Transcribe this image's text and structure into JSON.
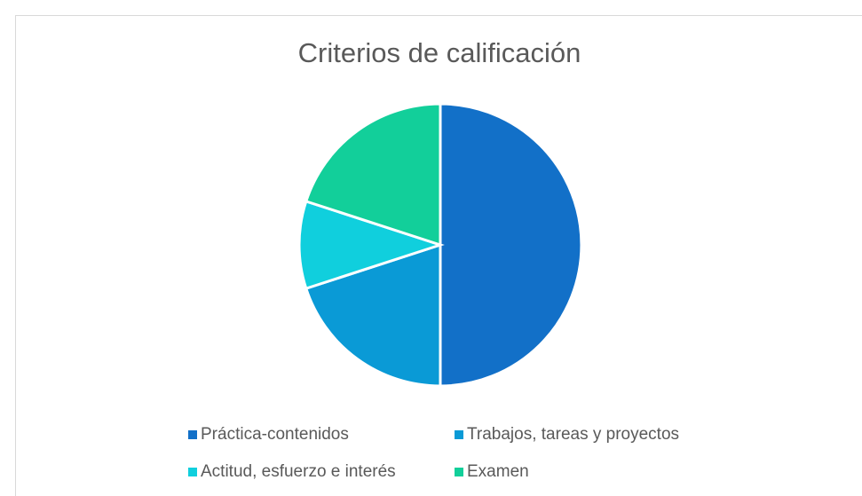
{
  "chart_data": {
    "type": "pie",
    "title": "Criterios de calificación",
    "categories": [
      "Práctica-contenidos",
      "Trabajos, tareas y proyectos",
      "Actitud, esfuerzo e interés",
      "Examen"
    ],
    "values": [
      50,
      20,
      10,
      20
    ],
    "colors": [
      "#1270c8",
      "#0a9ad6",
      "#10cfdd",
      "#12cf9a"
    ],
    "legend": "bottom"
  }
}
